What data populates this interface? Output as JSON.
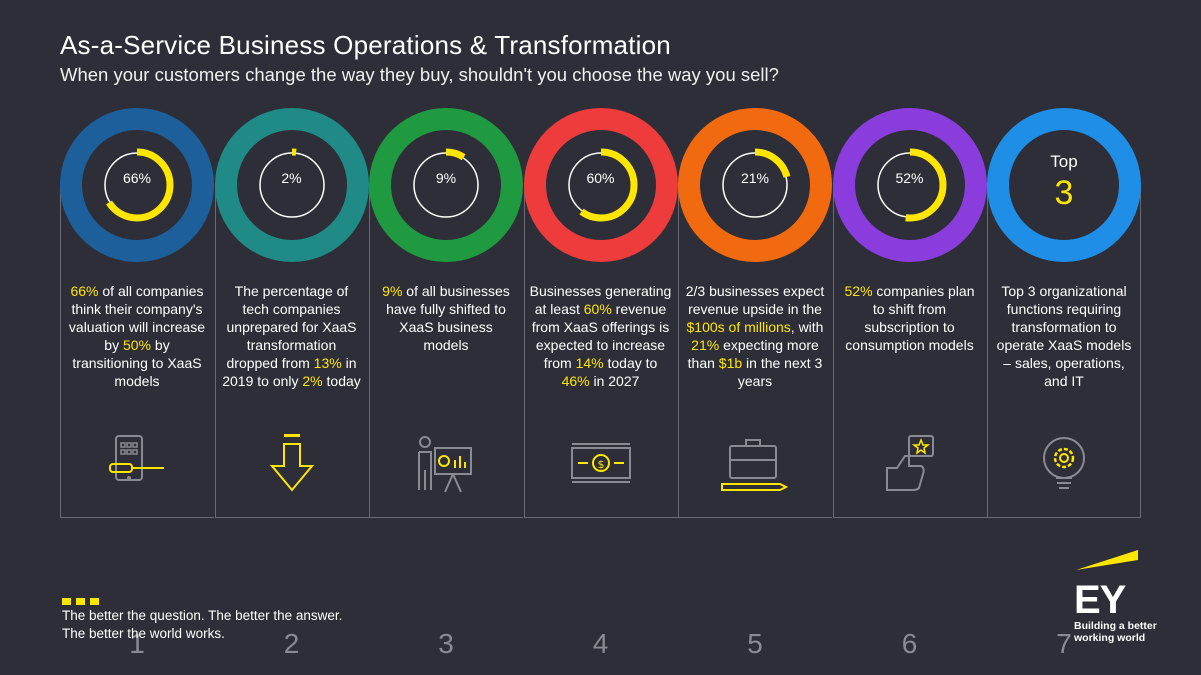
{
  "header": {
    "title": "As-a-Service Business Operations & Transformation",
    "subtitle": "When your customers change the way they buy, shouldn't you choose the way you sell?"
  },
  "columns": [
    {
      "ring_color": "#1c5f9a",
      "percent_label": "66%",
      "fraction": 0.66,
      "number": "1",
      "desc": [
        [
          "66%",
          true
        ],
        [
          " of all companies think their company's valuation will increase by ",
          false
        ],
        [
          "50%",
          true
        ],
        [
          " by transitioning to XaaS models",
          false
        ]
      ]
    },
    {
      "ring_color": "#1f8a86",
      "percent_label": "2%",
      "fraction": 0.02,
      "number": "2",
      "desc": [
        [
          "The percentage of tech companies unprepared for XaaS transformation dropped from ",
          false
        ],
        [
          "13%",
          true
        ],
        [
          " in 2019 to only ",
          false
        ],
        [
          "2%",
          true
        ],
        [
          " today",
          false
        ]
      ]
    },
    {
      "ring_color": "#1f9a40",
      "percent_label": "9%",
      "fraction": 0.09,
      "number": "3",
      "desc": [
        [
          "9%",
          true
        ],
        [
          " of all businesses have fully shifted to XaaS business models",
          false
        ]
      ]
    },
    {
      "ring_color": "#ee3b3b",
      "percent_label": "60%",
      "fraction": 0.6,
      "number": "4",
      "desc": [
        [
          "Businesses generating at least ",
          false
        ],
        [
          "60%",
          true
        ],
        [
          " revenue from XaaS offerings is expected to increase from ",
          false
        ],
        [
          "14%",
          true
        ],
        [
          " today to ",
          false
        ],
        [
          "46%",
          true
        ],
        [
          " in 2027",
          false
        ]
      ]
    },
    {
      "ring_color": "#f26a10",
      "percent_label": "21%",
      "fraction": 0.21,
      "number": "5",
      "desc": [
        [
          "2/3 businesses expect revenue upside in the ",
          false
        ],
        [
          "$100s of millions",
          true
        ],
        [
          ", with ",
          false
        ],
        [
          "21%",
          true
        ],
        [
          " expecting more than ",
          false
        ],
        [
          "$1b",
          true
        ],
        [
          " in the next 3 years",
          false
        ]
      ]
    },
    {
      "ring_color": "#8a3ddc",
      "percent_label": "52%",
      "fraction": 0.52,
      "number": "6",
      "desc": [
        [
          "52%",
          true
        ],
        [
          " companies plan to shift from subscription to consumption models",
          false
        ]
      ]
    },
    {
      "ring_color": "#1f8ee6",
      "top_label": "Top",
      "top_value": "3",
      "number": "7",
      "desc": [
        [
          "Top 3 organizational functions requiring transformation to operate XaaS models – sales, operations, and IT",
          false
        ]
      ]
    }
  ],
  "footer": {
    "tagline_1": "The better the question. The better the answer.",
    "tagline_2": "The better the world works."
  },
  "logo": {
    "letters": "EY",
    "line_1": "Building a better",
    "line_2": "working world"
  },
  "colors": {
    "accent": "#ffe600",
    "background": "#2e2e38"
  }
}
